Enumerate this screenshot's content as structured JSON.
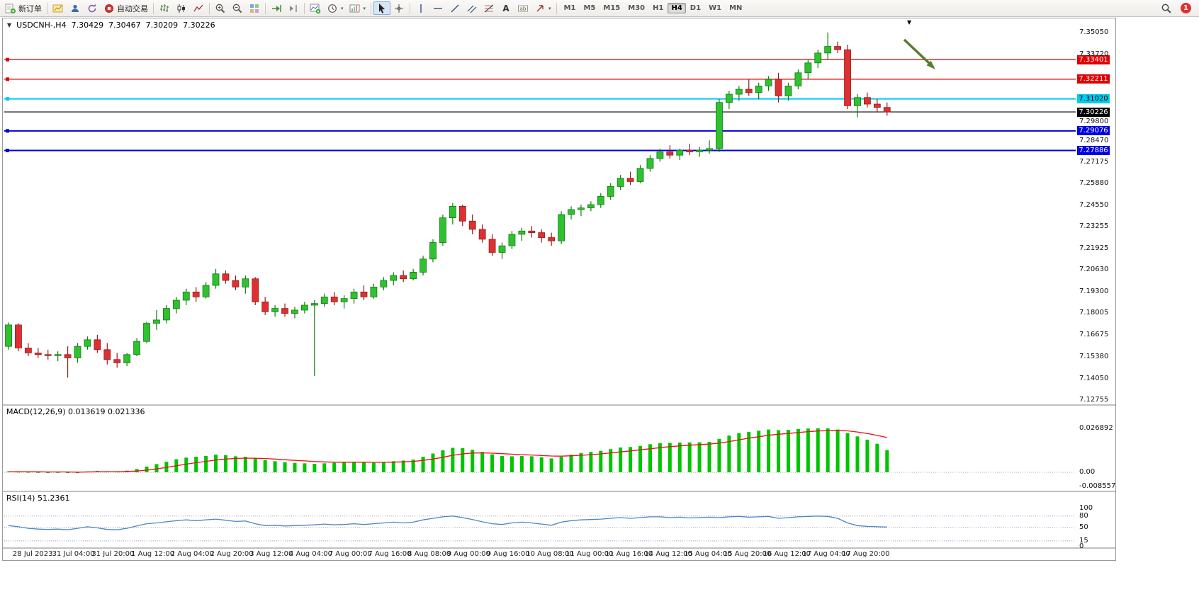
{
  "toolbar": {
    "new_order_label": "新订单",
    "autotrading_label": "自动交易",
    "timeframes": [
      "M1",
      "M5",
      "M15",
      "M30",
      "H1",
      "H4",
      "D1",
      "W1",
      "MN"
    ],
    "active_timeframe": "H4",
    "notification_count": "1"
  },
  "chart": {
    "title": "USDCNH-,H4",
    "ohlc": {
      "open": "7.30429",
      "high": "7.30467",
      "low": "7.30209",
      "close": "7.30226"
    },
    "price_axis": [
      {
        "text": "7.35050",
        "value": 7.3505
      },
      {
        "text": "7.33720",
        "value": 7.3372
      },
      {
        "text": "7.29800",
        "value": 7.298
      },
      {
        "text": "7.28470",
        "value": 7.2847
      },
      {
        "text": "7.27175",
        "value": 7.27175
      },
      {
        "text": "7.25880",
        "value": 7.2588
      },
      {
        "text": "7.24550",
        "value": 7.2455
      },
      {
        "text": "7.23255",
        "value": 7.23255
      },
      {
        "text": "7.21925",
        "value": 7.21925
      },
      {
        "text": "7.20630",
        "value": 7.2063
      },
      {
        "text": "7.19300",
        "value": 7.193
      },
      {
        "text": "7.18005",
        "value": 7.18005
      },
      {
        "text": "7.16675",
        "value": 7.16675
      },
      {
        "text": "7.15380",
        "value": 7.1538
      },
      {
        "text": "7.14050",
        "value": 7.1405
      },
      {
        "text": "7.12755",
        "value": 7.12755
      }
    ],
    "price_levels": [
      {
        "label": "7.33401",
        "value": 7.33401,
        "color": "#e00000",
        "text_color": "#ffffff",
        "width": 1.2,
        "name": "resistance-line-1"
      },
      {
        "label": "7.32211",
        "value": 7.32211,
        "color": "#e00000",
        "text_color": "#ffffff",
        "width": 1.2,
        "name": "resistance-line-2"
      },
      {
        "label": "7.31020",
        "value": 7.3102,
        "color": "#00ccee",
        "text_color": "#000000",
        "width": 2,
        "name": "pivot-line"
      },
      {
        "label": "7.30226",
        "value": 7.30226,
        "color": "#000000",
        "text_color": "#ffffff",
        "width": 1.2,
        "name": "current-price-line"
      },
      {
        "label": "7.29076",
        "value": 7.29076,
        "color": "#0000e0",
        "text_color": "#ffffff",
        "width": 2,
        "name": "support-line-1"
      },
      {
        "label": "7.27886",
        "value": 7.27886,
        "color": "#0000e0",
        "text_color": "#ffffff",
        "width": 2,
        "name": "support-line-2"
      }
    ],
    "annotation_arrow": {
      "color": "#567d2e",
      "direction": "down-right"
    }
  },
  "macd": {
    "name": "MACD(12,26,9)",
    "values": "0.013619 0.021336",
    "axis": [
      {
        "text": "0.026892",
        "value": 0.026892
      },
      {
        "text": "0.00",
        "value": 0
      },
      {
        "text": "-0.008557",
        "value": -0.008557
      }
    ]
  },
  "rsi": {
    "name": "RSI(14)",
    "value": "51.2361",
    "axis": [
      {
        "text": "100",
        "value": 100
      },
      {
        "text": "80",
        "value": 80
      },
      {
        "text": "50",
        "value": 50
      },
      {
        "text": "15",
        "value": 15
      },
      {
        "text": "0",
        "value": 0
      }
    ],
    "levels": [
      80,
      50,
      15
    ]
  },
  "chart_data": {
    "type": "candlestick",
    "symbol": "USDCNH-",
    "timeframe": "H4",
    "title": "USDCNH- H4",
    "price_range": [
      7.1244,
      7.359
    ],
    "levels": [
      7.33401,
      7.32211,
      7.3102,
      7.30226,
      7.29076,
      7.27886
    ],
    "colors": {
      "up": "#2fc12f",
      "down": "#de3030",
      "macd_histogram": "#00c400",
      "macd_signal": "#ee1111",
      "rsi_line": "#4a86c8"
    },
    "x_labels": [
      "28 Jul 2023",
      "31 Jul 04:00",
      "31 Jul 20:00",
      "1 Aug 12:00",
      "2 Aug 04:00",
      "2 Aug 20:00",
      "3 Aug 12:00",
      "4 Aug 04:00",
      "7 Aug 00:00",
      "7 Aug 16:00",
      "8 Aug 08:00",
      "9 Aug 00:00",
      "9 Aug 16:00",
      "10 Aug 08:00",
      "11 Aug 00:00",
      "11 Aug 16:00",
      "14 Aug 12:00",
      "15 Aug 04:00",
      "15 Aug 20:00",
      "16 Aug 12:00",
      "17 Aug 04:00",
      "17 Aug 20:00"
    ],
    "candles": [
      [
        7.16,
        7.1745,
        7.158,
        7.173
      ],
      [
        7.173,
        7.174,
        7.157,
        7.159
      ],
      [
        7.159,
        7.162,
        7.154,
        7.156
      ],
      [
        7.156,
        7.159,
        7.153,
        7.155
      ],
      [
        7.155,
        7.158,
        7.152,
        7.1545
      ],
      [
        7.1545,
        7.157,
        7.151,
        7.155
      ],
      [
        7.155,
        7.16,
        7.141,
        7.153
      ],
      [
        7.153,
        7.162,
        7.15,
        7.16
      ],
      [
        7.16,
        7.166,
        7.158,
        7.164
      ],
      [
        7.164,
        7.167,
        7.156,
        7.158
      ],
      [
        7.158,
        7.162,
        7.149,
        7.152
      ],
      [
        7.152,
        7.156,
        7.147,
        7.15
      ],
      [
        7.15,
        7.156,
        7.148,
        7.155
      ],
      [
        7.155,
        7.165,
        7.154,
        7.163
      ],
      [
        7.163,
        7.175,
        7.162,
        7.174
      ],
      [
        7.174,
        7.182,
        7.17,
        7.176
      ],
      [
        7.176,
        7.185,
        7.174,
        7.183
      ],
      [
        7.183,
        7.19,
        7.18,
        7.188
      ],
      [
        7.188,
        7.195,
        7.185,
        7.193
      ],
      [
        7.193,
        7.196,
        7.187,
        7.19
      ],
      [
        7.19,
        7.199,
        7.189,
        7.197
      ],
      [
        7.197,
        7.207,
        7.195,
        7.204
      ],
      [
        7.204,
        7.206,
        7.198,
        7.2
      ],
      [
        7.2,
        7.203,
        7.194,
        7.196
      ],
      [
        7.196,
        7.203,
        7.192,
        7.201
      ],
      [
        7.201,
        7.202,
        7.185,
        7.187
      ],
      [
        7.187,
        7.19,
        7.179,
        7.181
      ],
      [
        7.181,
        7.185,
        7.178,
        7.183
      ],
      [
        7.183,
        7.186,
        7.178,
        7.18
      ],
      [
        7.18,
        7.184,
        7.177,
        7.182
      ],
      [
        7.182,
        7.187,
        7.18,
        7.185
      ],
      [
        7.185,
        7.188,
        7.142,
        7.186
      ],
      [
        7.186,
        7.192,
        7.184,
        7.19
      ],
      [
        7.19,
        7.193,
        7.185,
        7.187
      ],
      [
        7.187,
        7.191,
        7.183,
        7.189
      ],
      [
        7.189,
        7.195,
        7.186,
        7.193
      ],
      [
        7.193,
        7.197,
        7.188,
        7.19
      ],
      [
        7.19,
        7.198,
        7.189,
        7.196
      ],
      [
        7.196,
        7.202,
        7.194,
        7.2
      ],
      [
        7.2,
        7.205,
        7.197,
        7.203
      ],
      [
        7.203,
        7.206,
        7.199,
        7.201
      ],
      [
        7.201,
        7.207,
        7.2,
        7.205
      ],
      [
        7.205,
        7.215,
        7.203,
        7.213
      ],
      [
        7.213,
        7.225,
        7.211,
        7.223
      ],
      [
        7.223,
        7.24,
        7.221,
        7.238
      ],
      [
        7.238,
        7.247,
        7.234,
        7.245
      ],
      [
        7.245,
        7.246,
        7.233,
        7.236
      ],
      [
        7.236,
        7.24,
        7.228,
        7.231
      ],
      [
        7.231,
        7.234,
        7.223,
        7.225
      ],
      [
        7.225,
        7.228,
        7.215,
        7.217
      ],
      [
        7.217,
        7.223,
        7.213,
        7.221
      ],
      [
        7.221,
        7.23,
        7.219,
        7.228
      ],
      [
        7.228,
        7.232,
        7.224,
        7.23
      ],
      [
        7.23,
        7.233,
        7.226,
        7.229
      ],
      [
        7.229,
        7.231,
        7.223,
        7.226
      ],
      [
        7.226,
        7.229,
        7.221,
        7.224
      ],
      [
        7.224,
        7.242,
        7.222,
        7.24
      ],
      [
        7.24,
        7.245,
        7.237,
        7.243
      ],
      [
        7.243,
        7.246,
        7.239,
        7.244
      ],
      [
        7.244,
        7.248,
        7.242,
        7.246
      ],
      [
        7.246,
        7.253,
        7.244,
        7.251
      ],
      [
        7.251,
        7.259,
        7.249,
        7.257
      ],
      [
        7.257,
        7.264,
        7.255,
        7.262
      ],
      [
        7.262,
        7.266,
        7.258,
        7.26
      ],
      [
        7.26,
        7.27,
        7.259,
        7.268
      ],
      [
        7.268,
        7.276,
        7.266,
        7.274
      ],
      [
        7.274,
        7.28,
        7.272,
        7.278
      ],
      [
        7.278,
        7.282,
        7.274,
        7.276
      ],
      [
        7.276,
        7.28,
        7.273,
        7.279
      ],
      [
        7.279,
        7.283,
        7.276,
        7.278
      ],
      [
        7.278,
        7.281,
        7.275,
        7.279
      ],
      [
        7.279,
        7.285,
        7.277,
        7.28
      ],
      [
        7.28,
        7.31,
        7.278,
        7.308
      ],
      [
        7.308,
        7.315,
        7.304,
        7.313
      ],
      [
        7.313,
        7.318,
        7.309,
        7.316
      ],
      [
        7.316,
        7.322,
        7.312,
        7.314
      ],
      [
        7.314,
        7.32,
        7.31,
        7.318
      ],
      [
        7.318,
        7.324,
        7.315,
        7.322
      ],
      [
        7.322,
        7.326,
        7.308,
        7.312
      ],
      [
        7.312,
        7.32,
        7.309,
        7.318
      ],
      [
        7.318,
        7.328,
        7.316,
        7.326
      ],
      [
        7.326,
        7.334,
        7.322,
        7.332
      ],
      [
        7.332,
        7.34,
        7.329,
        7.338
      ],
      [
        7.338,
        7.3505,
        7.334,
        7.342
      ],
      [
        7.342,
        7.345,
        7.338,
        7.34
      ],
      [
        7.34,
        7.343,
        7.304,
        7.306
      ],
      [
        7.306,
        7.313,
        7.299,
        7.311
      ],
      [
        7.311,
        7.314,
        7.305,
        7.307
      ],
      [
        7.307,
        7.31,
        7.302,
        7.305
      ],
      [
        7.305,
        7.308,
        7.3,
        7.30226
      ]
    ],
    "macd_histogram": [
      0.0005,
      0.0003,
      0.0002,
      0.0001,
      0.0,
      0.0001,
      -0.0002,
      0.0,
      0.0005,
      0.0008,
      0.0006,
      0.0004,
      0.001,
      0.002,
      0.0035,
      0.005,
      0.0065,
      0.008,
      0.009,
      0.0095,
      0.01,
      0.0108,
      0.0105,
      0.0098,
      0.0095,
      0.0085,
      0.0075,
      0.0068,
      0.0062,
      0.0058,
      0.0055,
      0.0052,
      0.0055,
      0.0058,
      0.006,
      0.0063,
      0.006,
      0.0058,
      0.0062,
      0.0068,
      0.0072,
      0.0078,
      0.0095,
      0.0115,
      0.0135,
      0.015,
      0.0148,
      0.0138,
      0.0125,
      0.011,
      0.01,
      0.0098,
      0.01,
      0.0098,
      0.0092,
      0.0085,
      0.0095,
      0.0108,
      0.0118,
      0.0125,
      0.0132,
      0.0142,
      0.0152,
      0.0155,
      0.0162,
      0.0172,
      0.0178,
      0.018,
      0.0182,
      0.0183,
      0.0184,
      0.0186,
      0.0205,
      0.0225,
      0.024,
      0.0248,
      0.0255,
      0.0262,
      0.0258,
      0.026,
      0.0265,
      0.0268,
      0.0269,
      0.0269,
      0.0262,
      0.024,
      0.022,
      0.02,
      0.0175,
      0.0136
    ],
    "macd_signal": [
      0.0004,
      0.0004,
      0.0003,
      0.0003,
      0.0002,
      0.0002,
      0.0002,
      0.0001,
      0.0002,
      0.0003,
      0.0004,
      0.0004,
      0.0005,
      0.0008,
      0.0013,
      0.0021,
      0.003,
      0.004,
      0.005,
      0.0059,
      0.0067,
      0.0075,
      0.0081,
      0.0085,
      0.0087,
      0.0086,
      0.0084,
      0.0081,
      0.0077,
      0.0073,
      0.007,
      0.0066,
      0.0064,
      0.0062,
      0.0062,
      0.0062,
      0.0062,
      0.0061,
      0.0061,
      0.0062,
      0.0064,
      0.0067,
      0.0073,
      0.0081,
      0.0092,
      0.0104,
      0.0113,
      0.0118,
      0.0119,
      0.0117,
      0.0114,
      0.0111,
      0.0108,
      0.0106,
      0.0103,
      0.01,
      0.0099,
      0.0101,
      0.0104,
      0.0108,
      0.0113,
      0.0119,
      0.0125,
      0.0131,
      0.0138,
      0.0144,
      0.0151,
      0.0157,
      0.0162,
      0.0166,
      0.017,
      0.0173,
      0.0179,
      0.0188,
      0.0199,
      0.0209,
      0.0218,
      0.0227,
      0.0233,
      0.0238,
      0.0244,
      0.0249,
      0.0253,
      0.0256,
      0.0257,
      0.0254,
      0.0247,
      0.0238,
      0.0226,
      0.0213
    ],
    "rsi_values": [
      55,
      52,
      48,
      46,
      45,
      46,
      44,
      48,
      52,
      49,
      45,
      44,
      48,
      54,
      60,
      62,
      65,
      68,
      70,
      68,
      70,
      72,
      69,
      66,
      67,
      60,
      55,
      56,
      54,
      55,
      56,
      57,
      59,
      57,
      58,
      60,
      58,
      60,
      62,
      64,
      62,
      64,
      70,
      74,
      78,
      80,
      76,
      71,
      65,
      60,
      58,
      62,
      64,
      62,
      59,
      56,
      64,
      68,
      70,
      71,
      72,
      74,
      76,
      74,
      76,
      78,
      78,
      76,
      77,
      75,
      76,
      77,
      76,
      78,
      79,
      77,
      78,
      79,
      74,
      76,
      78,
      79,
      80,
      79,
      74,
      62,
      55,
      53,
      52,
      51.24
    ]
  }
}
